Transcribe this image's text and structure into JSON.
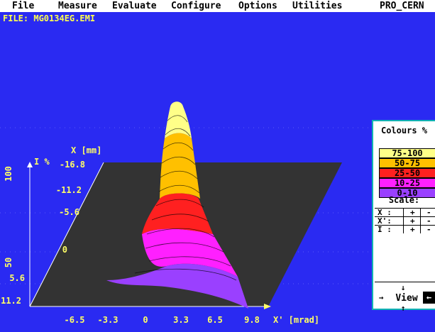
{
  "menu": {
    "items": [
      "File",
      "Measure",
      "Evaluate",
      "Configure",
      "Options",
      "Utilities",
      "PRO_CERN"
    ]
  },
  "file_label": "FILE: MG0134EG.EMI",
  "plot": {
    "y_axis_label": "I %",
    "y_ticks": [
      "100",
      "50"
    ],
    "x_mm_label": "X [mm]",
    "x_mm_ticks": [
      "-16.8",
      "-11.2",
      "-5.6",
      "0",
      "5.6",
      "11.2"
    ],
    "xprime_ticks": [
      "-6.5",
      "-3.3",
      "0",
      "3.3",
      "6.5",
      "9.8"
    ],
    "xprime_label": "X' [mrad]",
    "colors": {
      "bg": "#2a2af2",
      "plane": "#333333",
      "axis": "#ffffff",
      "labels": "#ffff66"
    }
  },
  "panel": {
    "colours_title": "Colours %",
    "legend": [
      {
        "label": "75-100",
        "color": "#ffff88"
      },
      {
        "label": "50-75",
        "color": "#ffc000"
      },
      {
        "label": "25-50",
        "color": "#ff2020"
      },
      {
        "label": "10-25",
        "color": "#ff20ff"
      },
      {
        "label": "0-10",
        "color": "#9a40ff"
      }
    ],
    "scale_title": "Scale:",
    "scale_rows": [
      {
        "axis": "X :",
        "plus": "+",
        "minus": "-"
      },
      {
        "axis": "X':",
        "plus": "+",
        "minus": "-"
      },
      {
        "axis": "I :",
        "plus": "+",
        "minus": "-"
      }
    ],
    "view": {
      "up": "↓",
      "down": "↑",
      "left": "→",
      "label": "View",
      "right": "←"
    }
  }
}
